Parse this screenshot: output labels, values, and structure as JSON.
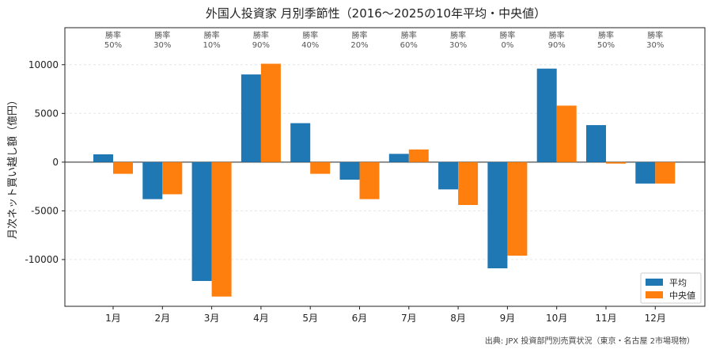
{
  "chart_data": {
    "type": "bar",
    "title": "外国人投資家 月別季節性（2016～2025の10年平均・中央値）",
    "xlabel": "",
    "ylabel": "月次ネット買い越し額（億円）",
    "categories": [
      "1月",
      "2月",
      "3月",
      "4月",
      "5月",
      "6月",
      "7月",
      "8月",
      "9月",
      "10月",
      "11月",
      "12月"
    ],
    "series": [
      {
        "name": "平均",
        "color": "#1f77b4",
        "values": [
          800,
          -3800,
          -12200,
          9000,
          4000,
          -1800,
          850,
          -2800,
          -10900,
          9600,
          3800,
          -2200
        ]
      },
      {
        "name": "中央値",
        "color": "#ff7f0e",
        "values": [
          -1200,
          -3300,
          -13800,
          10100,
          -1200,
          -3800,
          1300,
          -4400,
          -9600,
          5800,
          -150,
          -2200
        ]
      }
    ],
    "win_rate_label": "勝率",
    "win_rates": [
      "50%",
      "30%",
      "10%",
      "90%",
      "40%",
      "20%",
      "60%",
      "30%",
      "0%",
      "90%",
      "50%",
      "30%"
    ],
    "ylim": [
      -14800,
      13800
    ],
    "yticks": [
      10000,
      5000,
      0,
      -5000,
      -10000
    ],
    "ytick_labels": [
      "10000",
      "5000",
      "0",
      "-5000",
      "-10000"
    ],
    "grid": true,
    "legend_position": "lower-right",
    "source": "出典: JPX 投資部門別売買状況（東京・名古屋 2市場現物）"
  }
}
